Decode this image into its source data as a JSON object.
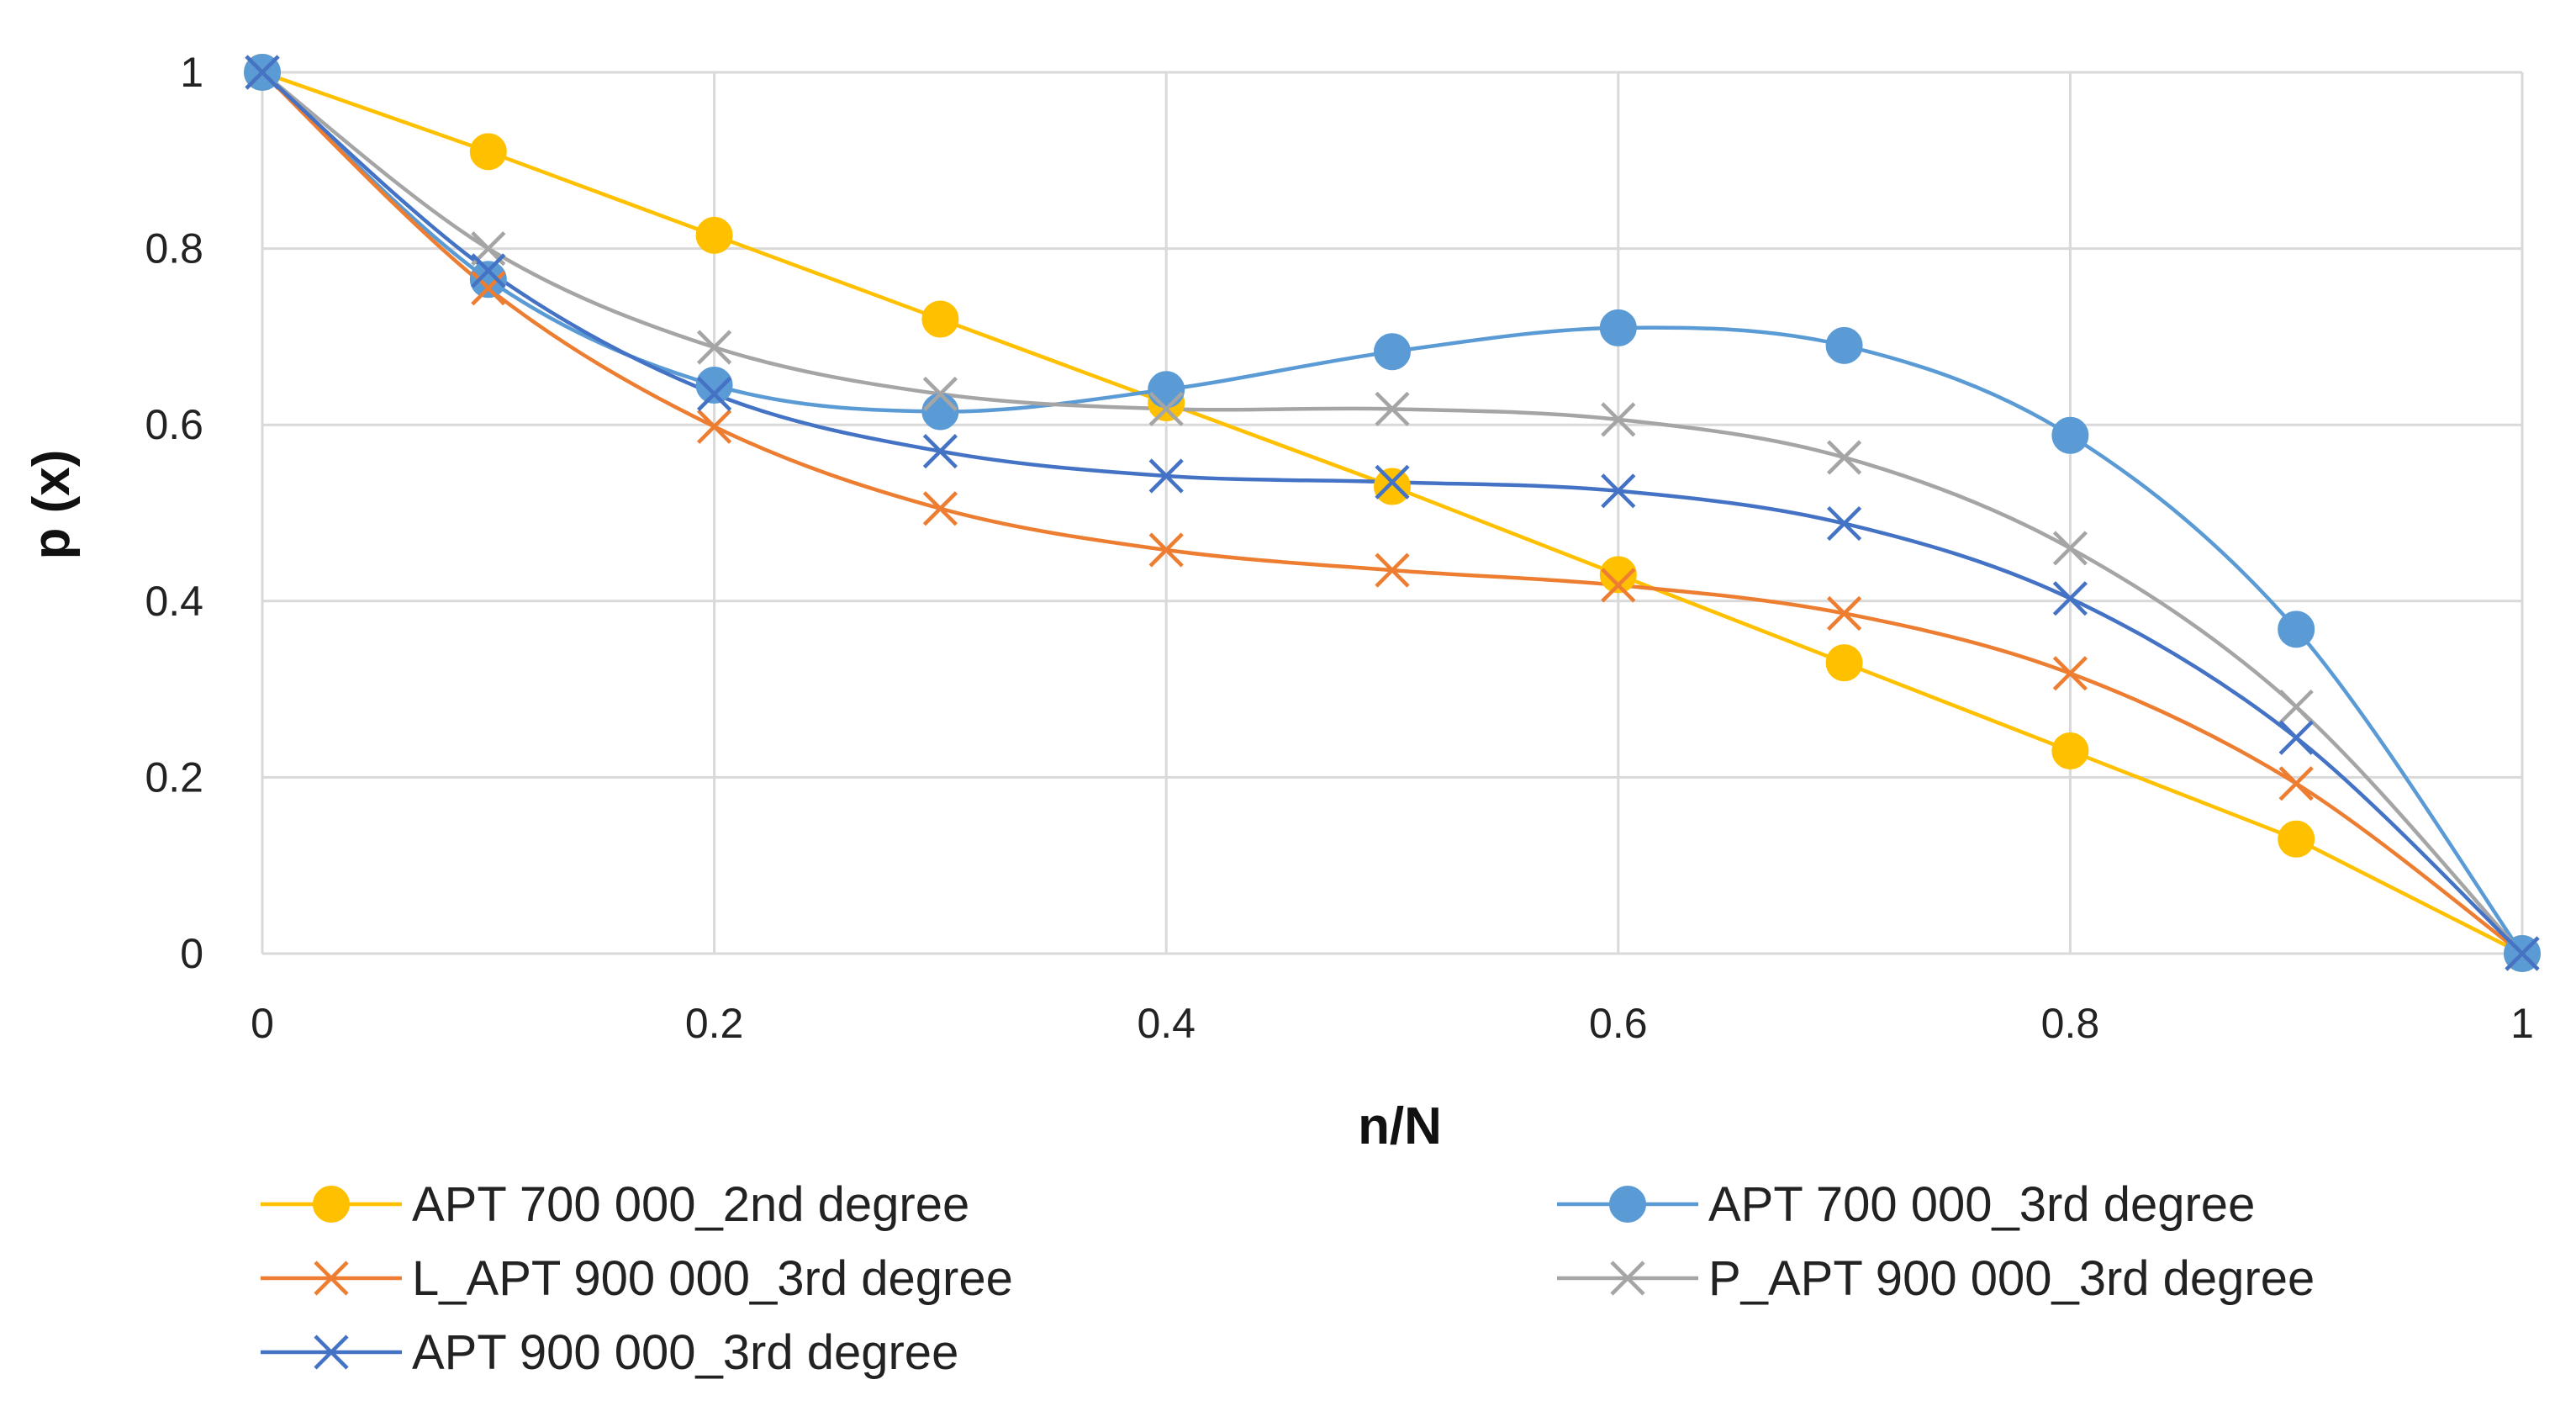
{
  "chart_data": {
    "type": "line",
    "title": "",
    "xlabel": "n/N",
    "ylabel": "p (x)",
    "xlim": [
      0,
      1
    ],
    "ylim": [
      0,
      1
    ],
    "x_ticks": [
      0,
      0.2,
      0.4,
      0.6,
      0.8,
      1
    ],
    "x_tick_labels": [
      "0",
      "0.2",
      "0.4",
      "0.6",
      "0.8",
      "1"
    ],
    "y_ticks": [
      0,
      0.2,
      0.4,
      0.6,
      0.8,
      1
    ],
    "y_tick_labels": [
      "0",
      "0.2",
      "0.4",
      "0.6",
      "0.8",
      "1"
    ],
    "grid": true,
    "legend_position": "bottom",
    "series": [
      {
        "name": "APT 700 000_2nd degree",
        "color": "#FFC000",
        "marker": "circle",
        "smooth": false,
        "x": [
          0,
          0.1,
          0.2,
          0.3,
          0.4,
          0.5,
          0.6,
          0.7,
          0.8,
          0.9,
          1
        ],
        "y": [
          1,
          0.91,
          0.815,
          0.72,
          0.625,
          0.53,
          0.43,
          0.33,
          0.23,
          0.13,
          0
        ]
      },
      {
        "name": "APT 700 000_3rd degree",
        "color": "#5B9BD5",
        "marker": "circle",
        "smooth": true,
        "x": [
          0,
          0.1,
          0.2,
          0.3,
          0.4,
          0.5,
          0.6,
          0.7,
          0.8,
          0.9,
          1
        ],
        "y": [
          1,
          0.765,
          0.645,
          0.615,
          0.64,
          0.683,
          0.71,
          0.69,
          0.588,
          0.368,
          0
        ]
      },
      {
        "name": "L_APT 900 000_3rd degree",
        "color": "#ED7D31",
        "marker": "x",
        "smooth": true,
        "x": [
          0,
          0.1,
          0.2,
          0.3,
          0.4,
          0.5,
          0.6,
          0.7,
          0.8,
          0.9,
          1
        ],
        "y": [
          1,
          0.755,
          0.598,
          0.505,
          0.458,
          0.435,
          0.418,
          0.386,
          0.318,
          0.193,
          0
        ]
      },
      {
        "name": "P_APT 900 000_3rd degree",
        "color": "#A5A5A5",
        "marker": "x",
        "smooth": true,
        "x": [
          0,
          0.1,
          0.2,
          0.3,
          0.4,
          0.5,
          0.6,
          0.7,
          0.8,
          0.9,
          1
        ],
        "y": [
          1,
          0.8,
          0.688,
          0.635,
          0.618,
          0.618,
          0.606,
          0.563,
          0.46,
          0.28,
          0
        ]
      },
      {
        "name": "APT 900 000_3rd degree",
        "color": "#4472C4",
        "marker": "x",
        "smooth": true,
        "x": [
          0,
          0.1,
          0.2,
          0.3,
          0.4,
          0.5,
          0.6,
          0.7,
          0.8,
          0.9,
          1
        ],
        "y": [
          1,
          0.775,
          0.635,
          0.57,
          0.542,
          0.535,
          0.525,
          0.488,
          0.403,
          0.245,
          0
        ]
      }
    ]
  }
}
